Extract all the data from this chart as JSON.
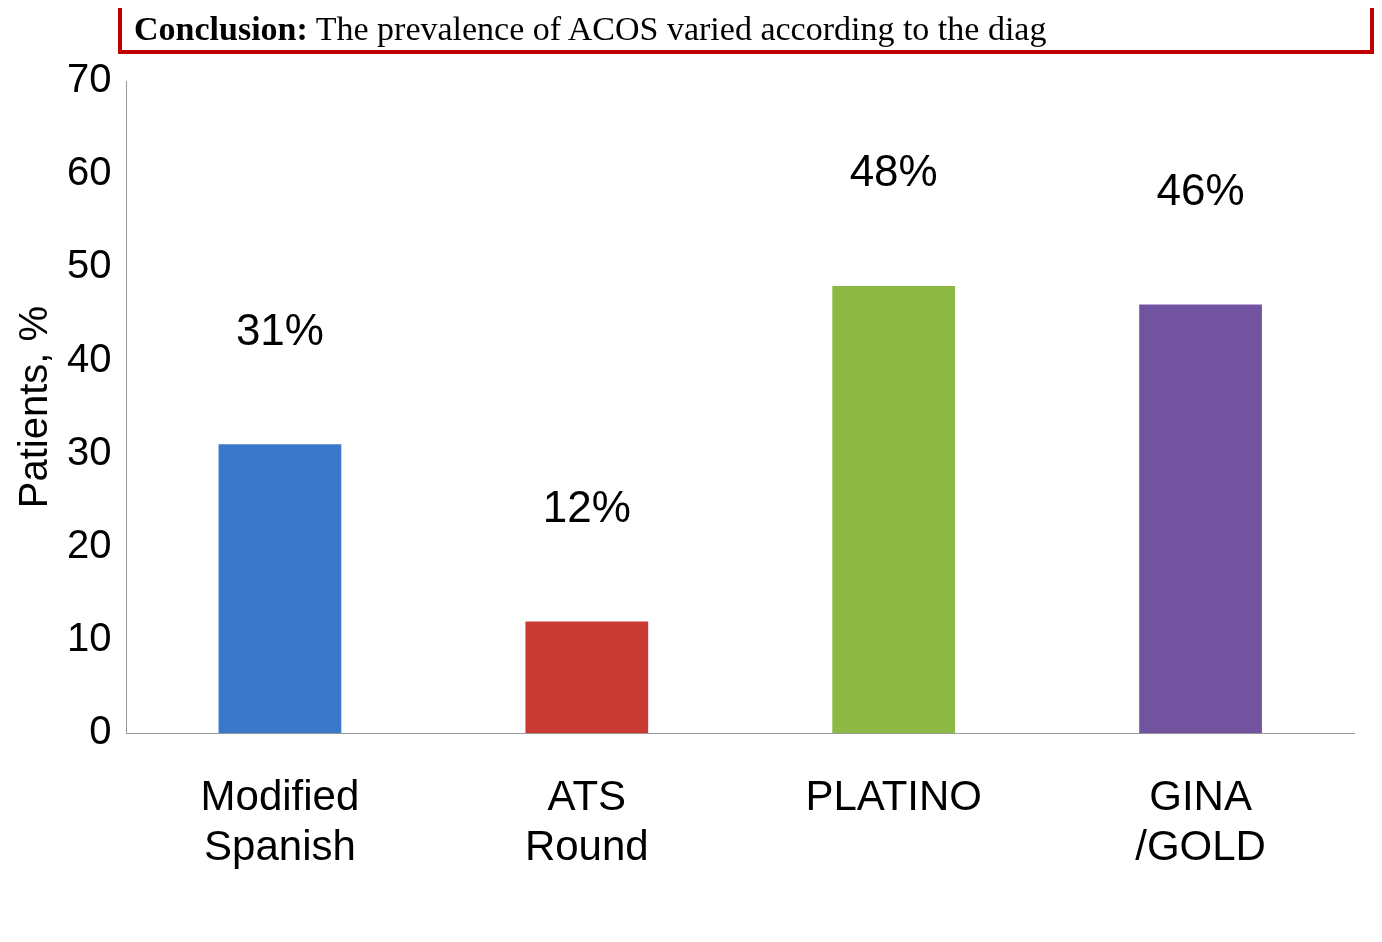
{
  "chart_data": {
    "type": "bar",
    "ylabel": "Patients, %",
    "categories": [
      "Modified Spanish",
      "ATS Round",
      "PLATINO",
      "GINA /GOLD"
    ],
    "values": [
      31,
      12,
      48,
      46
    ],
    "colors": [
      "#3a78c9",
      "#c93a35",
      "#8db843",
      "#7153a0"
    ],
    "value_labels": [
      "31%",
      "12%",
      "48%",
      "46%"
    ],
    "ylim": [
      0,
      70
    ],
    "yticks": [
      0,
      10,
      20,
      30,
      40,
      50,
      60,
      70
    ],
    "annotations": [
      "Conclusion: The prevalence of ACOS varied according to the diag"
    ]
  }
}
